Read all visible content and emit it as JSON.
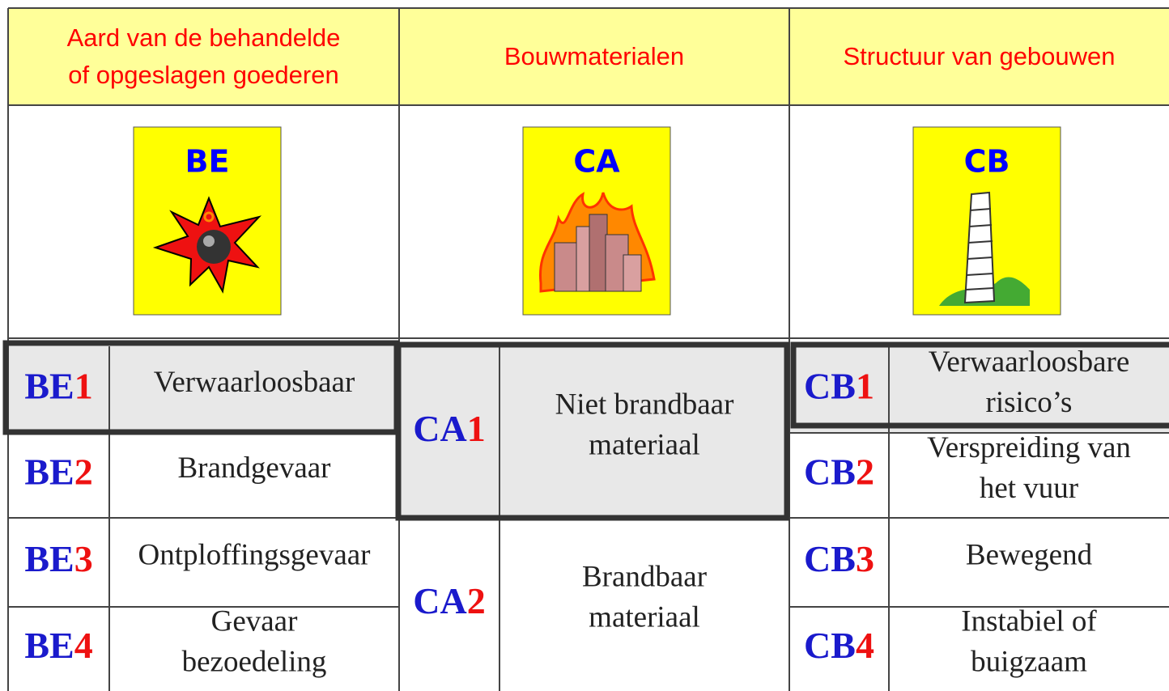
{
  "header": {
    "columns": [
      {
        "lines": [
          "Aard van de behandelde",
          "of opgeslagen goederen"
        ]
      },
      {
        "lines": [
          "Bouwmaterialen"
        ]
      },
      {
        "lines": [
          "Structuur van gebouwen"
        ]
      }
    ]
  },
  "icons": [
    "BE",
    "CA",
    "CB"
  ],
  "groups": [
    {
      "rows": [
        {
          "code": {
            "prefix": "BE",
            "number": "1"
          },
          "lines": [
            "Verwaarloosbaar"
          ]
        },
        {
          "code": {
            "prefix": "BE",
            "number": "2"
          },
          "lines": [
            "Brandgevaar"
          ]
        },
        {
          "code": {
            "prefix": "BE",
            "number": "3"
          },
          "lines": [
            "Ontploffingsgevaar"
          ]
        },
        {
          "code": {
            "prefix": "BE",
            "number": "4"
          },
          "lines": [
            "Gevaar",
            "bezoedeling"
          ]
        }
      ]
    },
    {
      "rows": [
        {
          "code": {
            "prefix": "CA",
            "number": "1"
          },
          "lines": [
            "Niet brandbaar",
            "materiaal"
          ]
        },
        {
          "code": {
            "prefix": "CA",
            "number": "2"
          },
          "lines": [
            "Brandbaar",
            "materiaal"
          ]
        }
      ]
    },
    {
      "rows": [
        {
          "code": {
            "prefix": "CB",
            "number": "1"
          },
          "lines": [
            "Verwaarloosbare",
            "risico’s"
          ]
        },
        {
          "code": {
            "prefix": "CB",
            "number": "2"
          },
          "lines": [
            "Verspreiding van",
            "het vuur"
          ]
        },
        {
          "code": {
            "prefix": "CB",
            "number": "3"
          },
          "lines": [
            "Bewegend"
          ]
        },
        {
          "code": {
            "prefix": "CB",
            "number": "4"
          },
          "lines": [
            "Instabiel of",
            "buigzaam"
          ]
        }
      ]
    }
  ]
}
